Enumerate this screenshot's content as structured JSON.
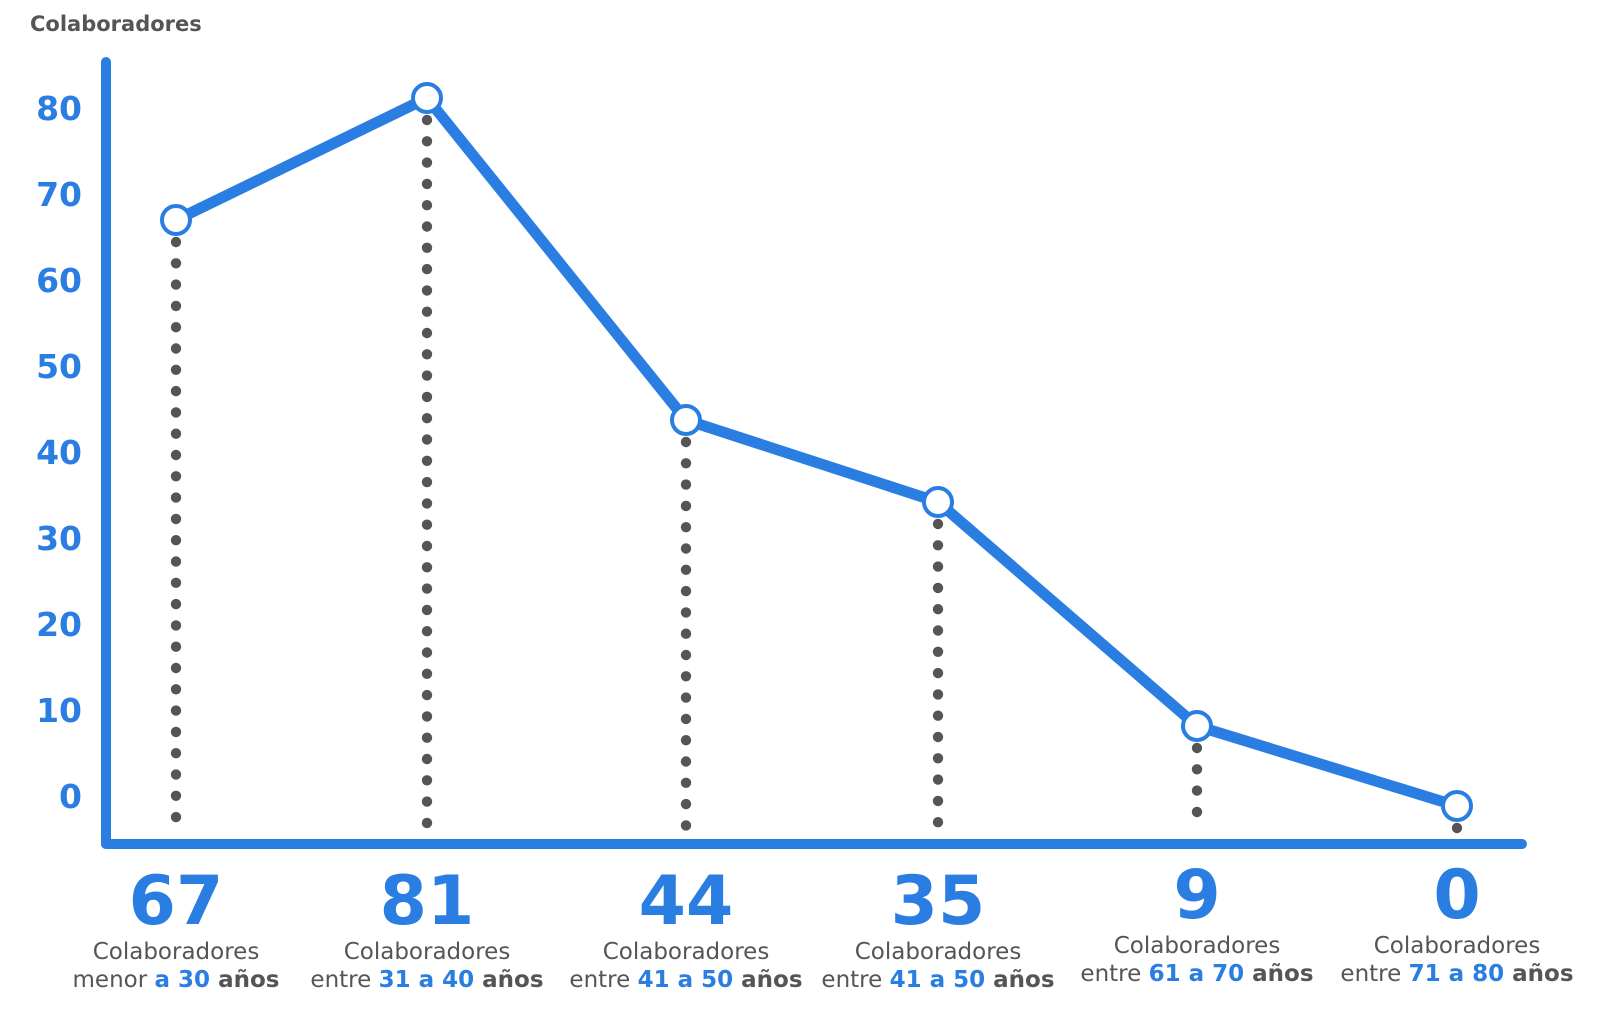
{
  "colors": {
    "accent": "#2a7de1",
    "text": "#555555",
    "dots": "#555555"
  },
  "chart_data": {
    "type": "line",
    "ylabel": "Colaboradores",
    "yticks": [
      "80",
      "70",
      "60",
      "50",
      "40",
      "30",
      "20",
      "10",
      "0"
    ],
    "ylim": [
      -5,
      90
    ],
    "grid": false,
    "categories": [
      {
        "value": 67,
        "label": "67",
        "line1": "Colaboradores",
        "pre": "menor ",
        "range": "a 30",
        "post": " años"
      },
      {
        "value": 81,
        "label": "81",
        "line1": "Colaboradores",
        "pre": "entre ",
        "range": "31 a 40",
        "post": " años"
      },
      {
        "value": 44,
        "label": "44",
        "line1": "Colaboradores",
        "pre": "entre ",
        "range": "41 a 50",
        "post": " años"
      },
      {
        "value": 35,
        "label": "35",
        "line1": "Colaboradores",
        "pre": "entre ",
        "range": "41 a 50",
        "post": " años"
      },
      {
        "value": 9,
        "label": "9",
        "line1": "Colaboradores",
        "pre": "entre ",
        "range": "61 a 70",
        "post": " años"
      },
      {
        "value": 0,
        "label": "0",
        "line1": "Colaboradores",
        "pre": "entre ",
        "range": "71 a 80",
        "post": " años"
      }
    ]
  }
}
